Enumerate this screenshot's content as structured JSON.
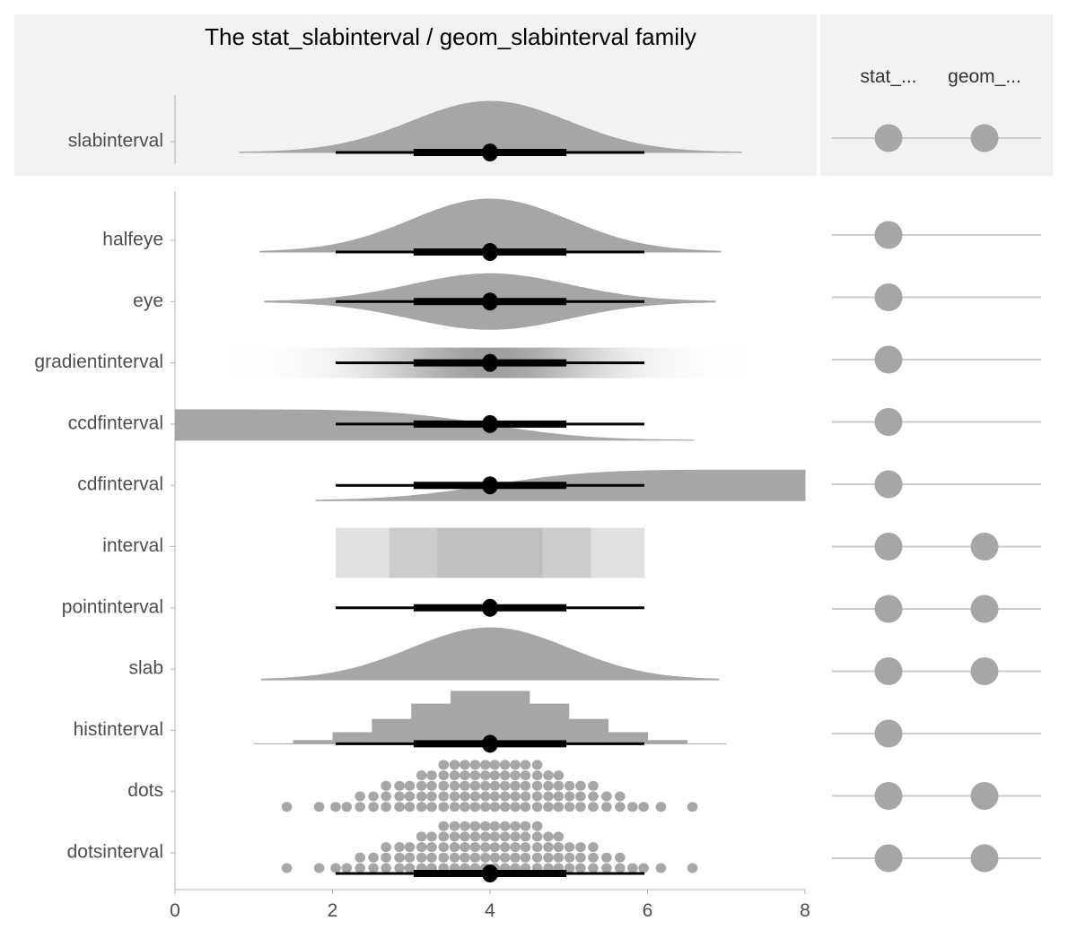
{
  "chart_data": {
    "type": "interval",
    "title": "The stat_slabinterval / geom_slabinterval family",
    "xlim": [
      0,
      8
    ],
    "x_ticks": [
      "0",
      "2",
      "4",
      "6",
      "8"
    ],
    "grid": false,
    "distribution": {
      "family": "normal",
      "mean": 4,
      "sd": 1
    },
    "intervals": {
      "point": 4,
      "p50": [
        3.33,
        4.67
      ],
      "p66": [
        3.03,
        4.97
      ],
      "p80": [
        2.72,
        5.28
      ],
      "p95": [
        2.04,
        5.96
      ]
    },
    "interval_colors": {
      "p95": "#e0e0e0",
      "p80": "#cccccc",
      "p50": "#bfbfbf"
    },
    "slab_color": "#a6a6a6",
    "point_color": "#000000",
    "columns": [
      "stat_...",
      "geom_..."
    ],
    "header_row": {
      "label": "slabinterval",
      "stat": true,
      "geom": true,
      "range": [
        0.82,
        7.19
      ]
    },
    "rows": [
      {
        "label": "halfeye",
        "stat": true,
        "geom": false,
        "range": [
          1.08,
          6.93
        ]
      },
      {
        "label": "eye",
        "stat": true,
        "geom": false,
        "range": [
          1.14,
          6.86
        ]
      },
      {
        "label": "gradientinterval",
        "stat": true,
        "geom": false,
        "range": [
          0.76,
          7.19
        ]
      },
      {
        "label": "ccdfinterval",
        "stat": true,
        "geom": false,
        "range": [
          0,
          6.59
        ]
      },
      {
        "label": "cdfinterval",
        "stat": true,
        "geom": false,
        "range": [
          1.79,
          8
        ]
      },
      {
        "label": "interval",
        "stat": true,
        "geom": true
      },
      {
        "label": "pointinterval",
        "stat": true,
        "geom": true
      },
      {
        "label": "slab",
        "stat": true,
        "geom": true,
        "range": [
          1.1,
          6.9
        ]
      },
      {
        "label": "histinterval",
        "stat": true,
        "geom": false,
        "range": [
          1,
          7
        ]
      },
      {
        "label": "dots",
        "stat": true,
        "geom": true
      },
      {
        "label": "dotsinterval",
        "stat": true,
        "geom": true
      }
    ],
    "histogram": {
      "bin_edges": [
        1.5,
        2,
        2.5,
        3,
        3.5,
        4,
        4.5,
        5,
        5.5,
        6,
        6.5
      ],
      "relative_heights": [
        0.07,
        0.22,
        0.47,
        0.76,
        1.0,
        1.0,
        0.76,
        0.47,
        0.22,
        0.07
      ]
    },
    "dots": [
      {
        "x": 1.42,
        "n": 1
      },
      {
        "x": 1.83,
        "n": 1
      },
      {
        "x": 2.04,
        "n": 1
      },
      {
        "x": 2.18,
        "n": 1
      },
      {
        "x": 2.35,
        "n": 2
      },
      {
        "x": 2.52,
        "n": 2
      },
      {
        "x": 2.68,
        "n": 3
      },
      {
        "x": 2.85,
        "n": 3
      },
      {
        "x": 2.98,
        "n": 3
      },
      {
        "x": 3.13,
        "n": 4
      },
      {
        "x": 3.26,
        "n": 4
      },
      {
        "x": 3.41,
        "n": 5
      },
      {
        "x": 3.55,
        "n": 5
      },
      {
        "x": 3.68,
        "n": 5
      },
      {
        "x": 3.81,
        "n": 5
      },
      {
        "x": 3.94,
        "n": 5
      },
      {
        "x": 4.06,
        "n": 5
      },
      {
        "x": 4.19,
        "n": 5
      },
      {
        "x": 4.32,
        "n": 5
      },
      {
        "x": 4.45,
        "n": 5
      },
      {
        "x": 4.6,
        "n": 5
      },
      {
        "x": 4.74,
        "n": 4
      },
      {
        "x": 4.87,
        "n": 4
      },
      {
        "x": 5.01,
        "n": 3
      },
      {
        "x": 5.15,
        "n": 3
      },
      {
        "x": 5.31,
        "n": 3
      },
      {
        "x": 5.48,
        "n": 2
      },
      {
        "x": 5.65,
        "n": 2
      },
      {
        "x": 5.81,
        "n": 1
      },
      {
        "x": 5.95,
        "n": 1
      },
      {
        "x": 6.17,
        "n": 1
      },
      {
        "x": 6.57,
        "n": 1
      }
    ]
  }
}
